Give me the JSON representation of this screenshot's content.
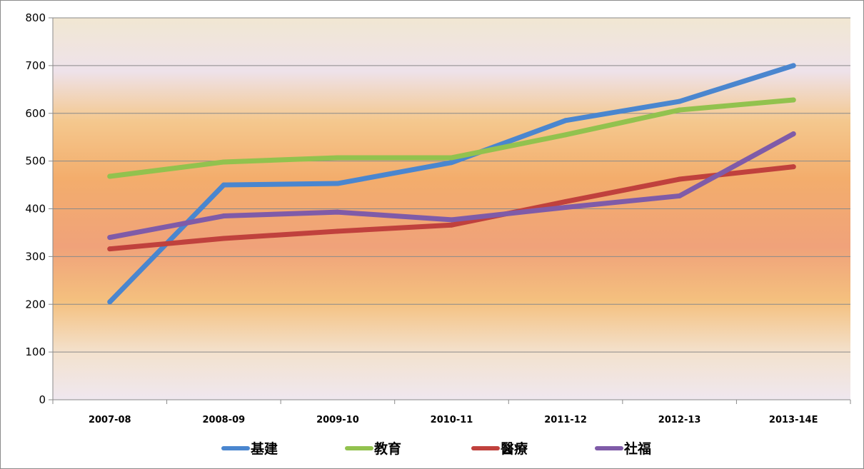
{
  "chart_data": {
    "type": "line",
    "title": "",
    "xlabel": "",
    "ylabel": "",
    "categories": [
      "2007-08",
      "2008-09",
      "2009-10",
      "2010-11",
      "2011-12",
      "2012-13",
      "2013-14E"
    ],
    "ylim": [
      0,
      800
    ],
    "yticks": [
      0,
      100,
      200,
      300,
      400,
      500,
      600,
      700,
      800
    ],
    "grid": true,
    "legend_position": "bottom",
    "series": [
      {
        "name": "基建",
        "color": "#4a86cf",
        "values": [
          205,
          450,
          453,
          497,
          585,
          625,
          700
        ]
      },
      {
        "name": "教育",
        "color": "#92c24e",
        "values": [
          468,
          498,
          507,
          507,
          555,
          607,
          628
        ]
      },
      {
        "name": "醫療",
        "color": "#c0413d",
        "values": [
          316,
          338,
          353,
          366,
          415,
          462,
          488
        ]
      },
      {
        "name": "社福",
        "color": "#7f5ba8",
        "values": [
          340,
          385,
          393,
          377,
          403,
          427,
          557
        ]
      }
    ]
  }
}
